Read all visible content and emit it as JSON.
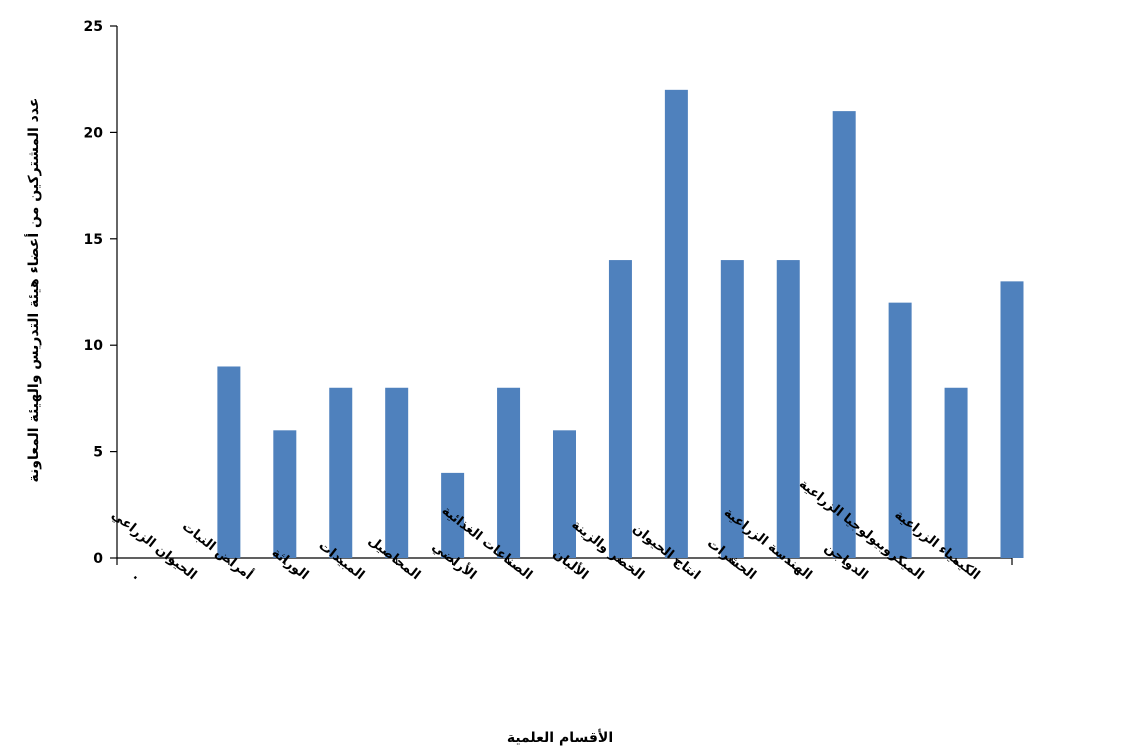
{
  "chart_data": {
    "type": "bar",
    "title": "",
    "xlabel": "الأقسام العلمية",
    "ylabel": "عدد المشتركين من أعضاء هيئة التدريس والهيئة المعاونة",
    "ylim": [
      0,
      25
    ],
    "yticks": [
      0,
      5,
      10,
      15,
      20,
      25
    ],
    "grid": false,
    "legend": "none",
    "bar_color": "#4F81BD",
    "categories": [
      ".",
      "الحيوان الزراعي",
      "أمراض النبات",
      "الوراثة",
      "المبيدات",
      "المحاصيل",
      "الأراضي",
      "الصناعات الغذائية",
      "الألبان",
      "الخضر والزينة",
      "انتاج الحيوان",
      "الحشرات",
      "الهندسة الزراعية",
      "الدواجن",
      "الميكروبيولوجيا الزراعية",
      "الكيمياء الزراعية"
    ],
    "values": [
      null,
      9,
      6,
      8,
      8,
      4,
      8,
      6,
      14,
      22,
      14,
      14,
      21,
      12,
      8,
      13
    ]
  }
}
